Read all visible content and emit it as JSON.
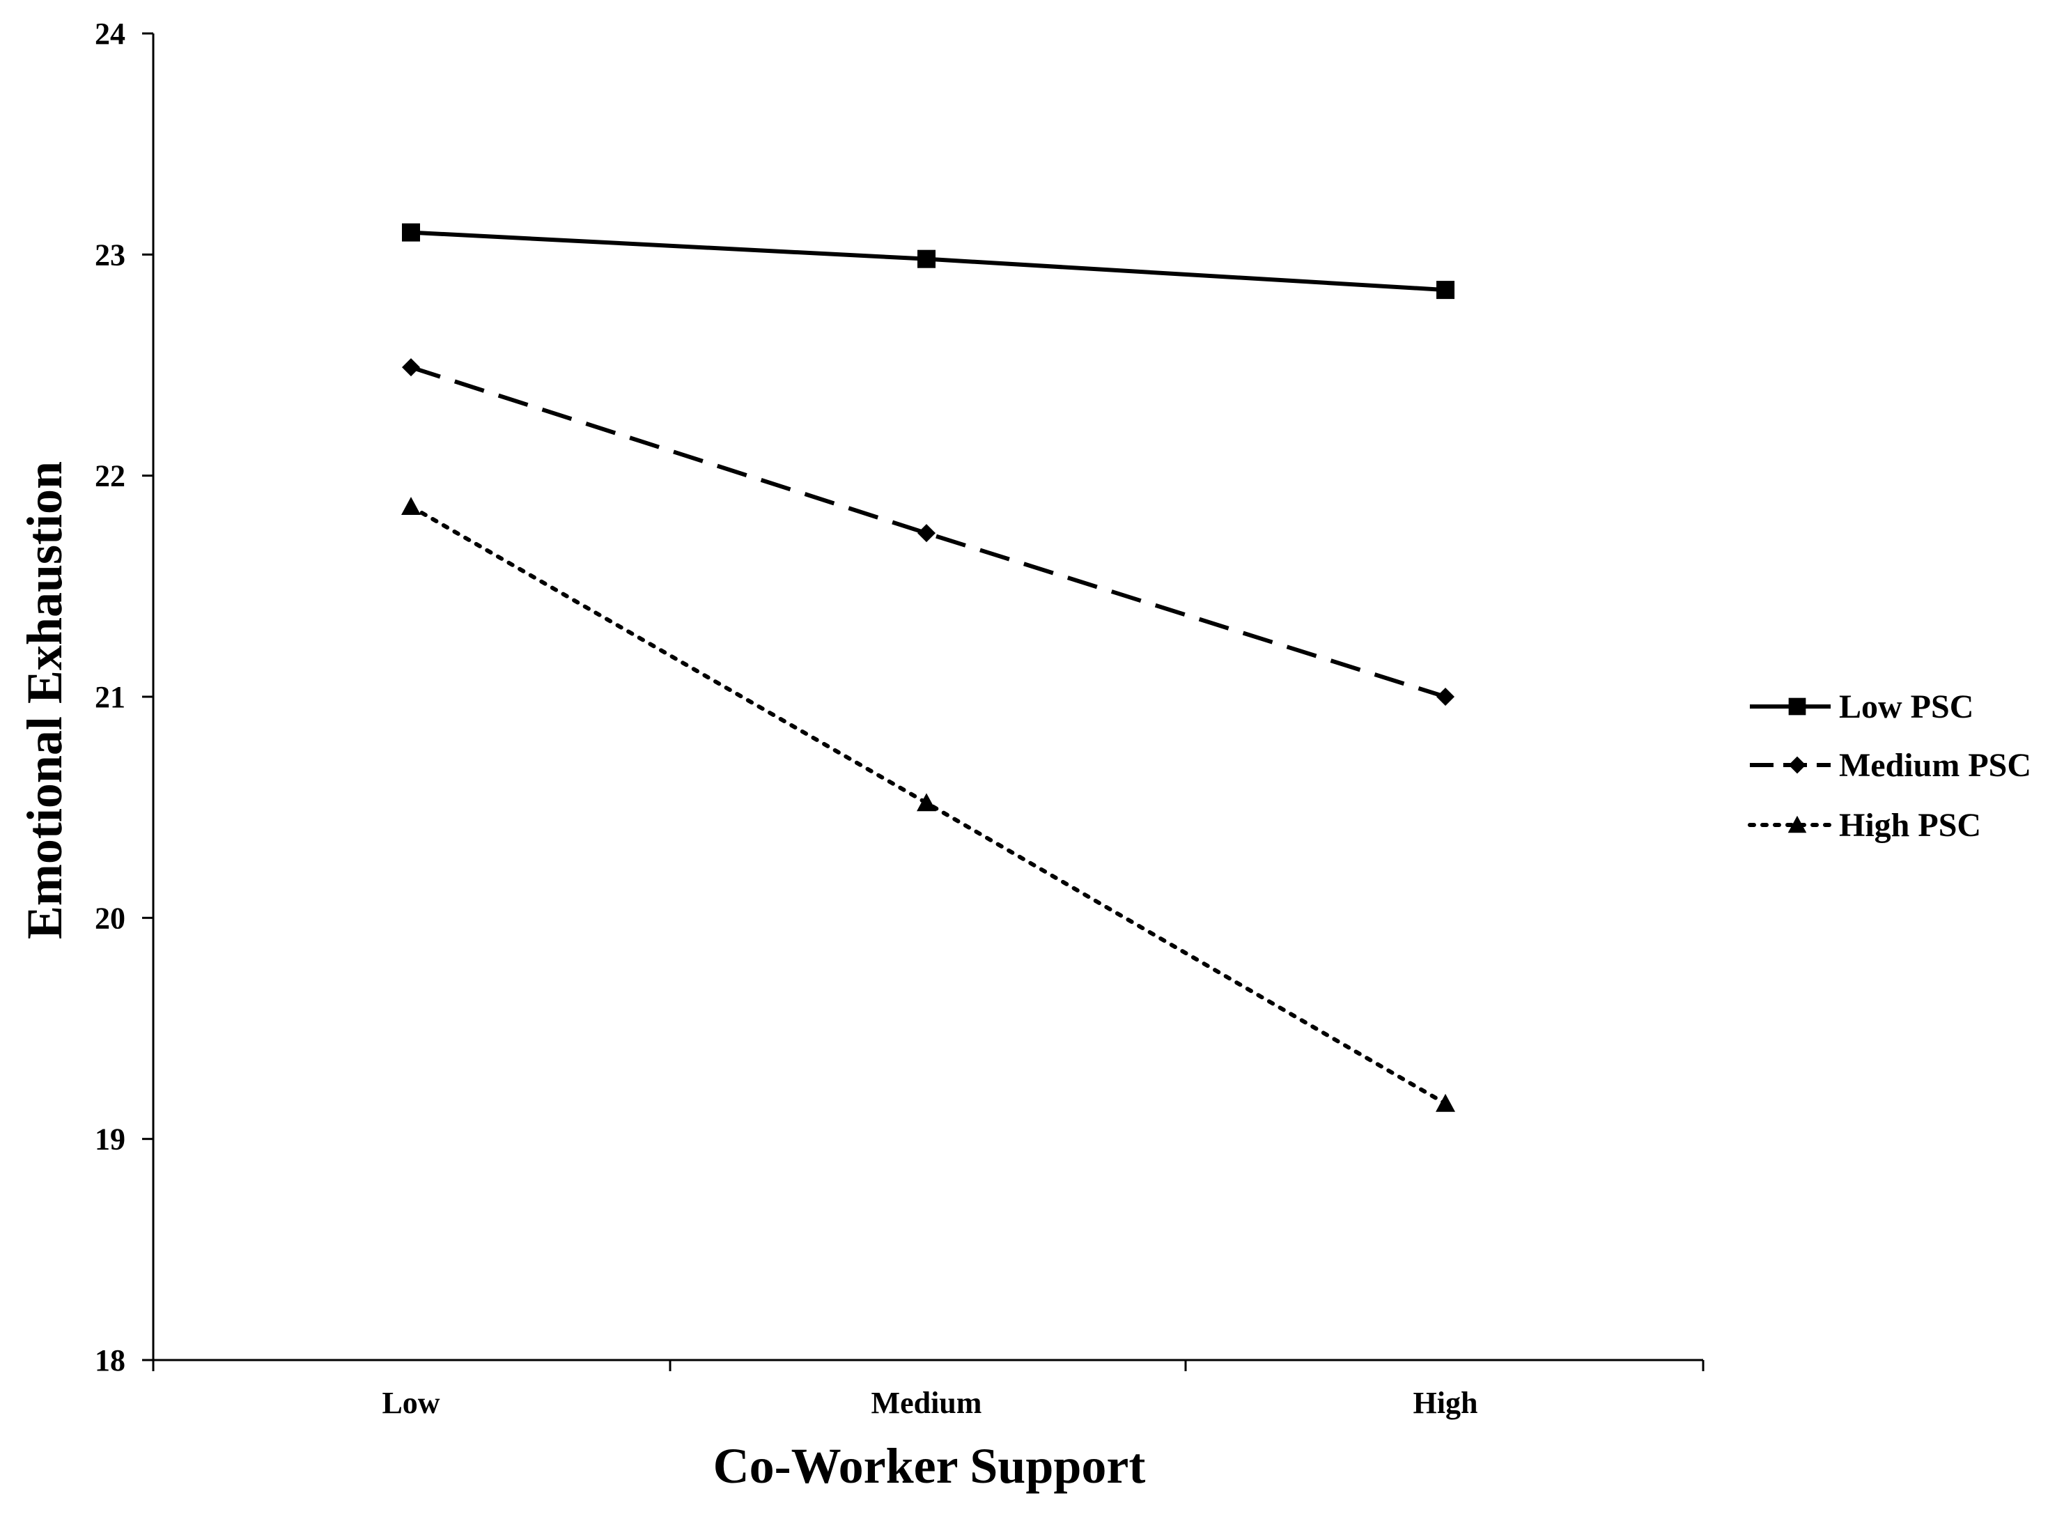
{
  "chart_data": {
    "type": "line",
    "title": "",
    "xlabel": "Co-Worker Support",
    "ylabel": "Emotional Exhaustion",
    "categories": [
      "Low",
      "Medium",
      "High"
    ],
    "ylim": [
      18,
      24
    ],
    "yticks": [
      "18",
      "19",
      "20",
      "21",
      "22",
      "23",
      "24"
    ],
    "grid": false,
    "legend_position": "right",
    "series": [
      {
        "name": "Low PSC",
        "values": [
          23.1,
          22.98,
          22.84
        ],
        "line_style": "solid",
        "marker": "square",
        "color": "#000000"
      },
      {
        "name": "Medium PSC",
        "values": [
          22.49,
          21.74,
          21.0
        ],
        "line_style": "dashed",
        "marker": "diamond",
        "color": "#000000"
      },
      {
        "name": "High PSC",
        "values": [
          21.86,
          20.52,
          19.16
        ],
        "line_style": "dotted",
        "marker": "triangle",
        "color": "#000000"
      }
    ]
  }
}
